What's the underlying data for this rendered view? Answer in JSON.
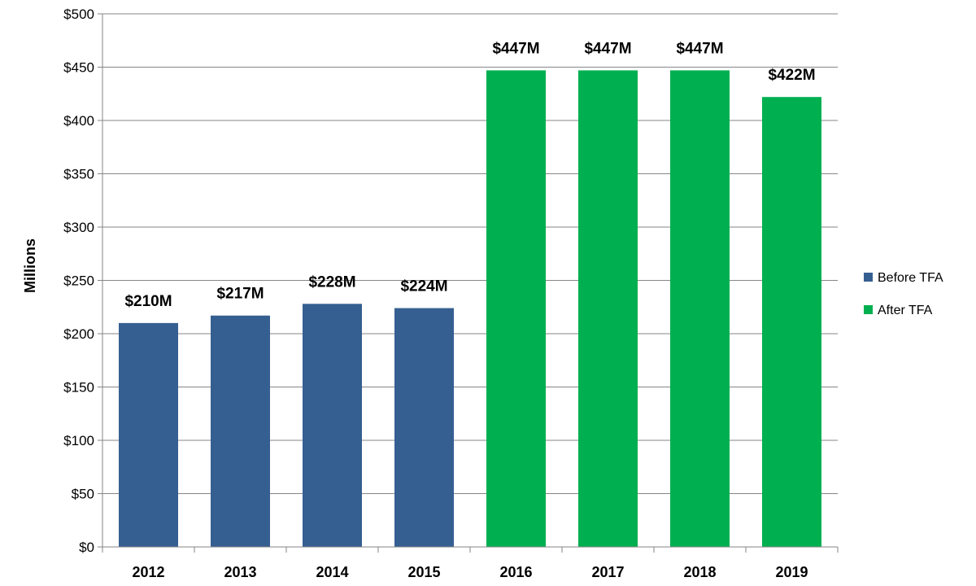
{
  "chart_data": {
    "type": "bar",
    "title": "",
    "xlabel": "",
    "ylabel": "Millions",
    "ylim": [
      0,
      500
    ],
    "ytick_step": 50,
    "ytick_prefix": "$",
    "grid": true,
    "legend_position": "right",
    "categories": [
      "2012",
      "2013",
      "2014",
      "2015",
      "2016",
      "2017",
      "2018",
      "2019"
    ],
    "series": [
      {
        "name": "Before TFA",
        "color": "#365F91",
        "values": [
          210,
          217,
          228,
          224,
          null,
          null,
          null,
          null
        ],
        "data_labels": [
          "$210M",
          "$217M",
          "$228M",
          "$224M",
          null,
          null,
          null,
          null
        ]
      },
      {
        "name": "After TFA",
        "color": "#00B050",
        "values": [
          null,
          null,
          null,
          null,
          447,
          447,
          447,
          422
        ],
        "data_labels": [
          null,
          null,
          null,
          null,
          "$447M",
          "$447M",
          "$447M",
          "$422M"
        ]
      }
    ]
  }
}
